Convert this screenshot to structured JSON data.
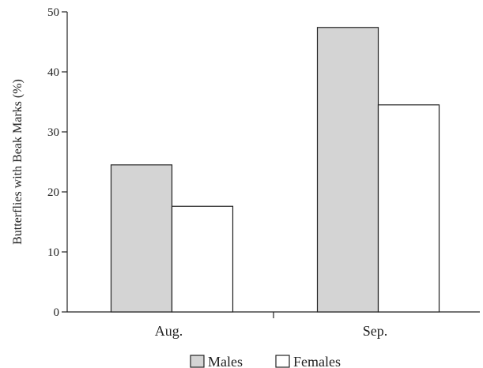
{
  "chart_data": {
    "type": "bar",
    "categories": [
      "Aug.",
      "Sep."
    ],
    "series": [
      {
        "name": "Males",
        "values": [
          24.5,
          47.4
        ],
        "color": "#d4d4d4"
      },
      {
        "name": "Females",
        "values": [
          17.6,
          34.5
        ],
        "color": "#ffffff"
      }
    ],
    "title": "",
    "xlabel": "",
    "ylabel": "Butterflies with Beak Marks (%)",
    "ylim": [
      0,
      50
    ],
    "yticks": [
      "0",
      "10",
      "20",
      "30",
      "40",
      "50"
    ],
    "grid": false,
    "legend_position": "bottom"
  }
}
